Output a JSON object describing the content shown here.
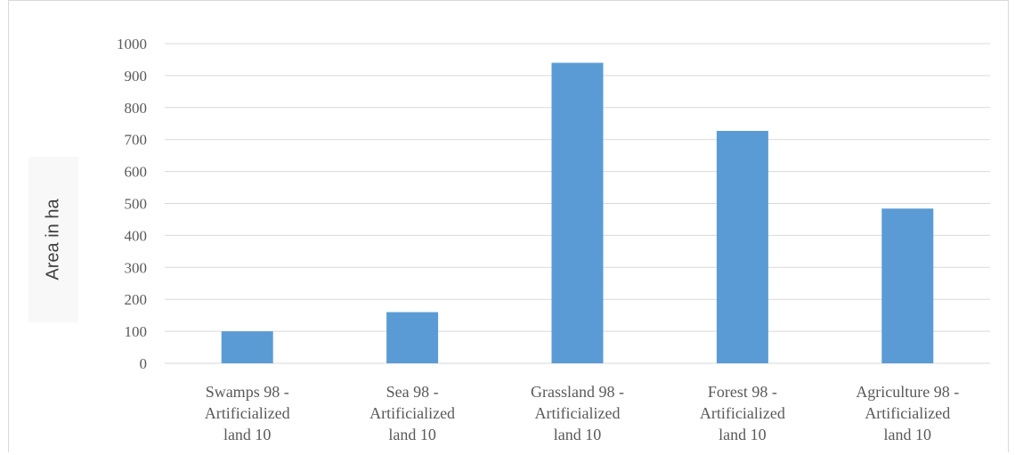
{
  "chart_data": {
    "type": "bar",
    "categories": [
      [
        "Swamps 98 -",
        "Artificialized",
        "land 10"
      ],
      [
        "Sea 98 -",
        "Artificialized",
        "land 10"
      ],
      [
        "Grassland 98 -",
        "Artificialized",
        "land 10"
      ],
      [
        "Forest 98 -",
        "Artificialized",
        "land 10"
      ],
      [
        "Agriculture 98 -",
        "Artificialized",
        "land 10"
      ]
    ],
    "values": [
      100,
      160,
      940,
      727,
      484
    ],
    "title": "",
    "xlabel": "",
    "ylabel": "Area in ha",
    "ylim": [
      0,
      1000
    ],
    "yticks": [
      "0",
      "100",
      "200",
      "300",
      "400",
      "500",
      "600",
      "700",
      "800",
      "900",
      "1000"
    ],
    "grid": true,
    "legend": "none",
    "bar_color": "#5b9bd5",
    "grid_color": "#d9d9d9",
    "text_color": "#595959"
  }
}
